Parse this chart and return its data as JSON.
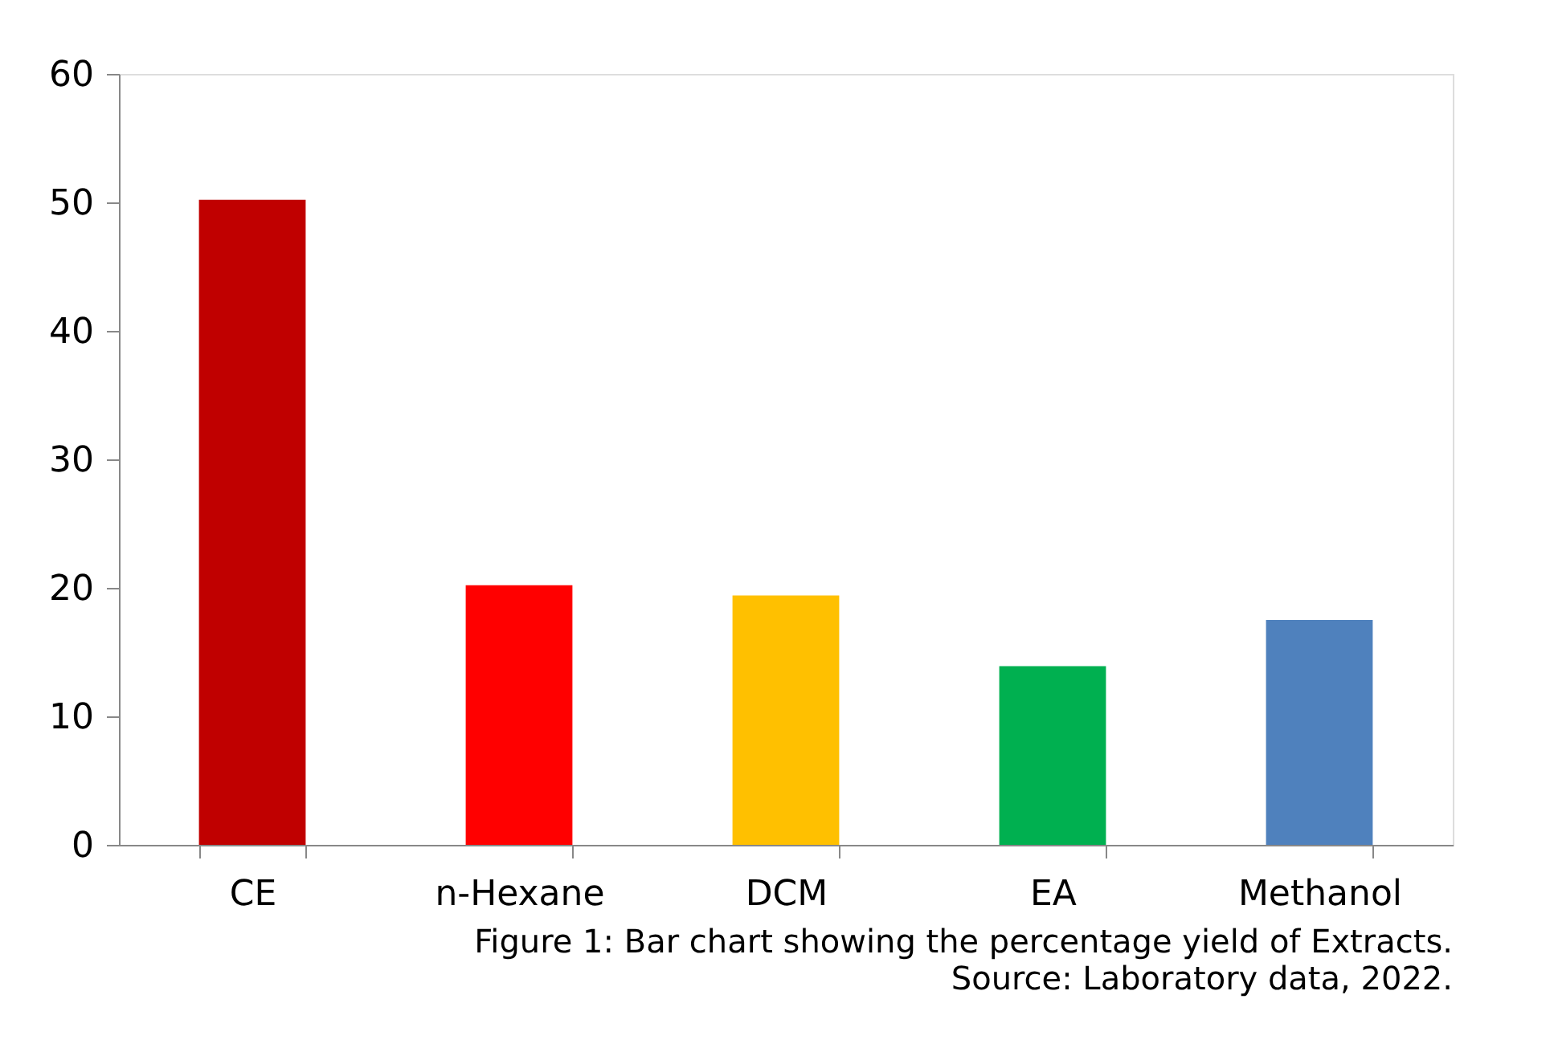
{
  "chart_data": {
    "type": "bar",
    "categories": [
      "CE",
      "n-Hexane",
      "DCM",
      "EA",
      "Methanol"
    ],
    "values": [
      50.2,
      20.2,
      19.4,
      13.9,
      17.5
    ],
    "colors": [
      "#c00000",
      "#ff0000",
      "#ffc000",
      "#00b050",
      "#4f81bd"
    ],
    "ylim": [
      0,
      60
    ],
    "yticks": [
      0,
      10,
      20,
      30,
      40,
      50,
      60
    ],
    "grid": false,
    "legend": false,
    "annotations": [
      "Figure 1: Bar chart showing the percentage yield of Extracts.",
      "Source: Laboratory data, 2022."
    ]
  }
}
